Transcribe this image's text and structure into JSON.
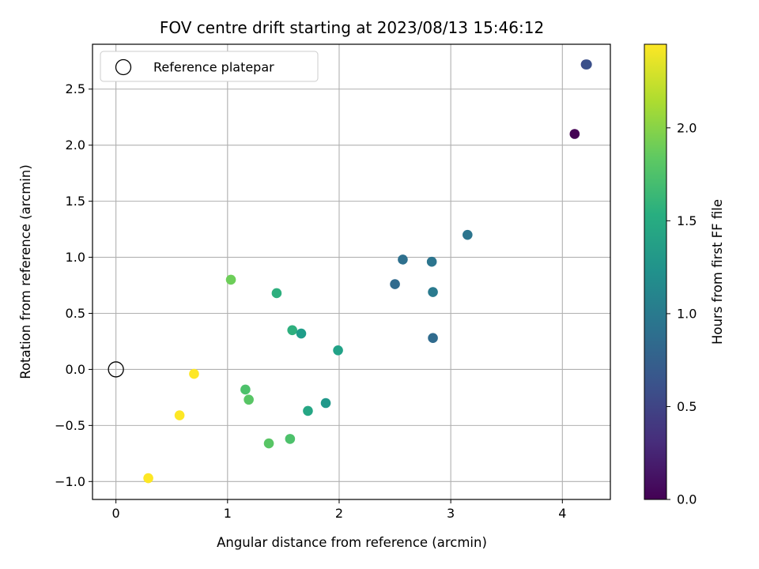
{
  "chart_data": {
    "type": "scatter",
    "title": "FOV centre drift starting at 2023/08/13 15:46:12",
    "xlabel": "Angular distance from reference (arcmin)",
    "ylabel": "Rotation from reference (arcmin)",
    "xlim": [
      -0.21,
      4.43
    ],
    "ylim": [
      -1.16,
      2.9
    ],
    "xticks": [
      0,
      1,
      2,
      3,
      4
    ],
    "xtick_labels": [
      "0",
      "1",
      "2",
      "3",
      "4"
    ],
    "yticks": [
      -1.0,
      -0.5,
      0.0,
      0.5,
      1.0,
      1.5,
      2.0,
      2.5
    ],
    "ytick_labels": [
      "−1.0",
      "−0.5",
      "0.0",
      "0.5",
      "1.0",
      "1.5",
      "2.0",
      "2.5"
    ],
    "grid": true,
    "legend": {
      "placement": "upper-left",
      "entries": [
        "Reference platepar"
      ]
    },
    "reference_point": {
      "x": 0,
      "y": 0,
      "label": "Reference platepar"
    },
    "colorbar": {
      "label": "Hours from first FF file",
      "colormap": "viridis",
      "range": [
        0,
        2.45
      ],
      "ticks": [
        0.0,
        0.5,
        1.0,
        1.5,
        2.0
      ],
      "tick_labels": [
        "0.0",
        "0.5",
        "1.0",
        "1.5",
        "2.0"
      ]
    },
    "points": [
      {
        "x": 4.11,
        "y": 2.1,
        "hours": 0.0
      },
      {
        "x": 4.21,
        "y": 2.72,
        "hours": 0.55
      },
      {
        "x": 4.22,
        "y": 2.72,
        "hours": 0.6
      },
      {
        "x": 3.15,
        "y": 1.2,
        "hours": 0.95
      },
      {
        "x": 2.57,
        "y": 0.98,
        "hours": 0.9
      },
      {
        "x": 2.83,
        "y": 0.96,
        "hours": 0.95
      },
      {
        "x": 2.5,
        "y": 0.76,
        "hours": 0.85
      },
      {
        "x": 2.84,
        "y": 0.69,
        "hours": 1.0
      },
      {
        "x": 2.84,
        "y": 0.28,
        "hours": 0.85
      },
      {
        "x": 1.44,
        "y": 0.68,
        "hours": 1.55
      },
      {
        "x": 1.03,
        "y": 0.8,
        "hours": 1.9
      },
      {
        "x": 1.58,
        "y": 0.35,
        "hours": 1.55
      },
      {
        "x": 1.66,
        "y": 0.32,
        "hours": 1.35
      },
      {
        "x": 1.99,
        "y": 0.17,
        "hours": 1.4
      },
      {
        "x": 1.16,
        "y": -0.18,
        "hours": 1.75
      },
      {
        "x": 1.19,
        "y": -0.27,
        "hours": 1.8
      },
      {
        "x": 1.88,
        "y": -0.3,
        "hours": 1.3
      },
      {
        "x": 1.72,
        "y": -0.37,
        "hours": 1.45
      },
      {
        "x": 1.56,
        "y": -0.62,
        "hours": 1.75
      },
      {
        "x": 1.37,
        "y": -0.66,
        "hours": 1.8
      },
      {
        "x": 0.7,
        "y": -0.04,
        "hours": 2.45
      },
      {
        "x": 0.57,
        "y": -0.41,
        "hours": 2.45
      },
      {
        "x": 0.29,
        "y": -0.97,
        "hours": 2.45
      }
    ]
  }
}
